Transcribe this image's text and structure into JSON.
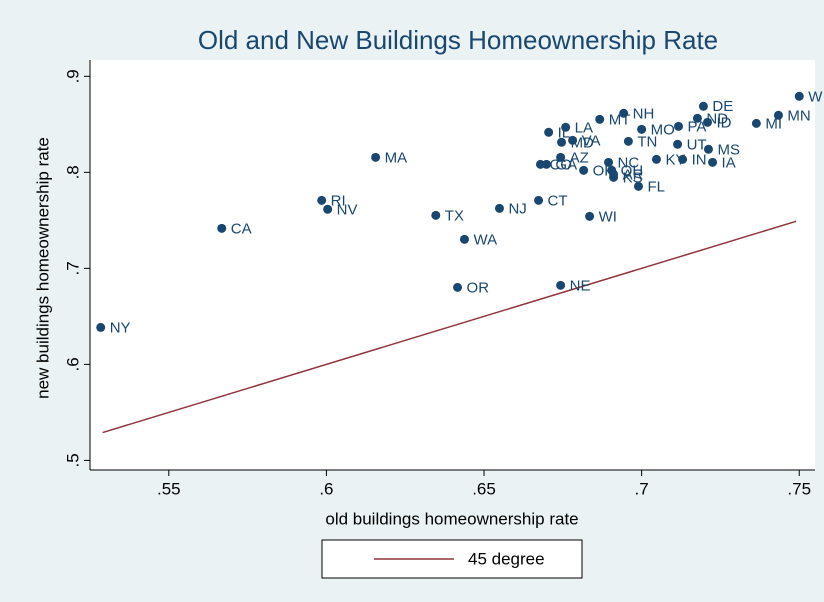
{
  "chart_data": {
    "type": "scatter",
    "title": "Old and New Buildings Homeownership Rate",
    "x_label": "old buildings homeownership rate",
    "y_label": "new buildings homeownership rate",
    "xlim": [
      0.525,
      0.755
    ],
    "ylim": [
      0.49,
      0.917
    ],
    "xticks": [
      {
        "value": 0.55,
        "label": ".55"
      },
      {
        "value": 0.6,
        "label": ".6"
      },
      {
        "value": 0.65,
        "label": ".65"
      },
      {
        "value": 0.7,
        "label": ".7"
      },
      {
        "value": 0.75,
        "label": ".75"
      }
    ],
    "yticks": [
      {
        "value": 0.5,
        "label": ".5"
      },
      {
        "value": 0.6,
        "label": ".6"
      },
      {
        "value": 0.7,
        "label": ".7"
      },
      {
        "value": 0.8,
        "label": ".8"
      },
      {
        "value": 0.9,
        "label": ".9"
      }
    ],
    "point_color": "#1a476f",
    "labels": [
      "NY",
      "CA",
      "RI",
      "NV",
      "MA",
      "TX",
      "WA",
      "OR",
      "NJ",
      "CT",
      "NE",
      "WI",
      "AZ",
      "CO",
      "GA",
      "IL",
      "LA",
      "MD",
      "VA",
      "OK",
      "NC",
      "OH",
      "AR",
      "KS",
      "FL",
      "MT",
      "NH",
      "MO",
      "TN",
      "PA",
      "UT",
      "KY",
      "IN",
      "MS",
      "IA",
      "DE",
      "ID",
      "ND",
      "MI",
      "MN",
      "W"
    ],
    "x": [
      0.5284,
      0.5668,
      0.5985,
      0.6004,
      0.6156,
      0.6347,
      0.6438,
      0.6416,
      0.6549,
      0.6673,
      0.6743,
      0.6835,
      0.6743,
      0.6679,
      0.6698,
      0.6705,
      0.6759,
      0.6746,
      0.6781,
      0.6816,
      0.6895,
      0.6905,
      0.6911,
      0.6911,
      0.699,
      0.6867,
      0.6943,
      0.7,
      0.6958,
      0.7117,
      0.7114,
      0.7047,
      0.713,
      0.7212,
      0.7225,
      0.7196,
      0.7209,
      0.7177,
      0.7364,
      0.7434,
      0.75
    ],
    "y": [
      0.6385,
      0.7417,
      0.7708,
      0.7615,
      0.8156,
      0.7552,
      0.7302,
      0.6802,
      0.7625,
      0.7708,
      0.6823,
      0.7542,
      0.8156,
      0.8083,
      0.8083,
      0.8417,
      0.8469,
      0.8313,
      0.8333,
      0.8021,
      0.8104,
      0.8021,
      0.7979,
      0.7948,
      0.7854,
      0.8552,
      0.8615,
      0.8448,
      0.8323,
      0.8479,
      0.8292,
      0.8135,
      0.8135,
      0.824,
      0.8104,
      0.8688,
      0.8521,
      0.8563,
      0.851,
      0.8594,
      0.8792
    ],
    "line": {
      "name": "45 degree",
      "color": "#90353b",
      "x": [
        0.529,
        0.749
      ],
      "y": [
        0.529,
        0.749
      ]
    }
  }
}
